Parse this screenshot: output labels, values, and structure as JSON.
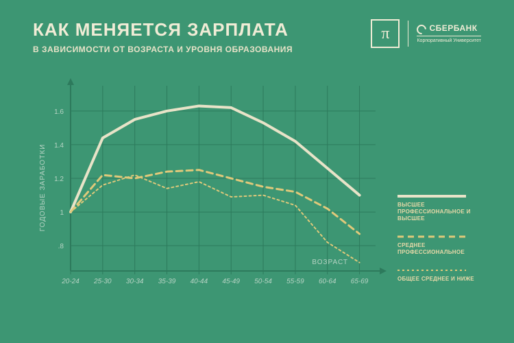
{
  "header": {
    "title": "КАК МЕНЯЕТСЯ ЗАРПЛАТА",
    "subtitle": "В ЗАВИСИМОСТИ ОТ ВОЗРАСТА И УРОВНЯ ОБРАЗОВАНИЯ",
    "pi_symbol": "π",
    "sber_brand": "СБЕРБАНК",
    "sber_sub": "Корпоративный Университет"
  },
  "chart": {
    "type": "line",
    "background_color": "#3d9673",
    "grid_color": "#2d7a5c",
    "axis_color": "#2d7a5c",
    "arrow_color": "#2d7a5c",
    "xlabel": "ВОЗРАСТ",
    "ylabel": "ГОДОВЫЕ ЗАРАБОТКИ",
    "label_fontsize": 10,
    "label_color": "#b8d4c5",
    "tick_color": "#b8d4c5",
    "tick_fontsize": 10,
    "x_categories": [
      "20-24",
      "25-30",
      "30-34",
      "35-39",
      "40-44",
      "45-49",
      "50-54",
      "55-59",
      "60-64",
      "65-69"
    ],
    "y_ticks": [
      0.8,
      1.0,
      1.2,
      1.4,
      1.6
    ],
    "y_tick_labels": [
      ".8",
      "1",
      "1.2",
      "1.4",
      "1.6"
    ],
    "ylim": [
      0.65,
      1.75
    ],
    "series": [
      {
        "name": "higher",
        "label": "ВЫСШЕЕ ПРОФЕССИОНАЛЬНОЕ И ВЫСШЕЕ",
        "color": "#e8e3c8",
        "width": 4,
        "dash": "",
        "values": [
          1.0,
          1.44,
          1.55,
          1.6,
          1.63,
          1.62,
          1.53,
          1.42,
          1.26,
          1.1
        ]
      },
      {
        "name": "secondary_prof",
        "label": "СРЕДНЕЕ ПРОФЕССИОНАЛЬНОЕ",
        "color": "#e0c97a",
        "width": 3,
        "dash": "9,6",
        "values": [
          1.0,
          1.22,
          1.2,
          1.24,
          1.25,
          1.2,
          1.15,
          1.12,
          1.02,
          0.87
        ]
      },
      {
        "name": "general",
        "label": "ОБЩЕЕ СРЕДНЕЕ И НИЖЕ",
        "color": "#e0c97a",
        "width": 2,
        "dash": "3,4",
        "values": [
          1.0,
          1.16,
          1.22,
          1.14,
          1.18,
          1.09,
          1.1,
          1.04,
          0.82,
          0.7
        ]
      }
    ]
  },
  "legend": {
    "items": [
      {
        "label": "ВЫСШЕЕ ПРОФЕССИОНАЛЬНОЕ И ВЫСШЕЕ"
      },
      {
        "label": "СРЕДНЕЕ ПРОФЕССИОНАЛЬНОЕ"
      },
      {
        "label": "ОБЩЕЕ СРЕДНЕЕ И НИЖЕ"
      }
    ]
  }
}
